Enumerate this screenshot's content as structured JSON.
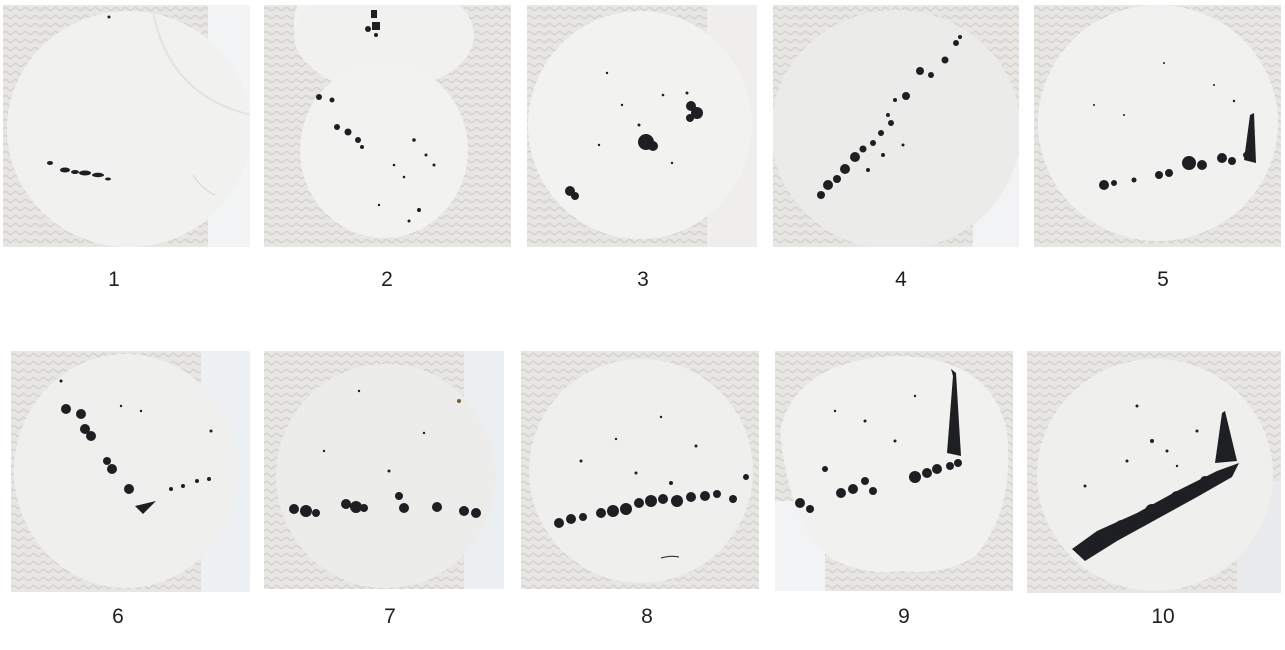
{
  "figure": {
    "panels": [
      {
        "label": "1"
      },
      {
        "label": "2"
      },
      {
        "label": "3"
      },
      {
        "label": "4"
      },
      {
        "label": "5"
      },
      {
        "label": "6"
      },
      {
        "label": "7"
      },
      {
        "label": "8"
      },
      {
        "label": "9"
      },
      {
        "label": "10"
      }
    ]
  }
}
